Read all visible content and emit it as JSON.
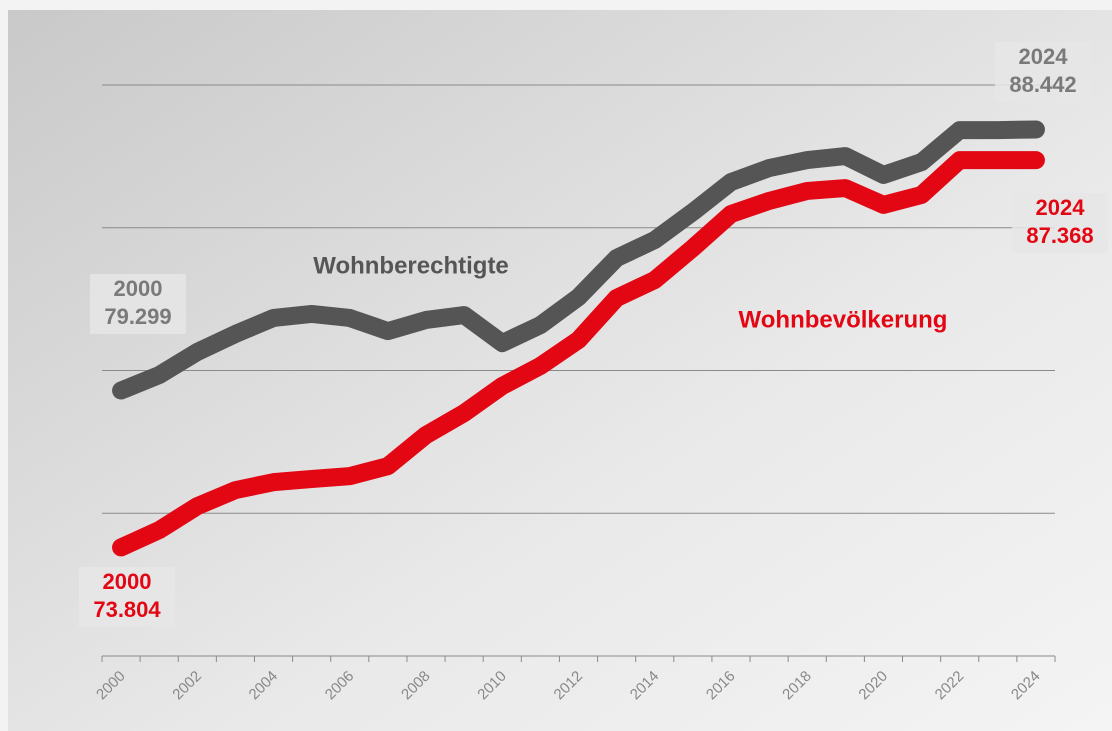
{
  "chart_data": {
    "type": "line",
    "categories": [
      "2000",
      null,
      "2002",
      null,
      "2004",
      null,
      "2006",
      null,
      "2008",
      null,
      "2010",
      null,
      "2012",
      null,
      "2014",
      null,
      "2016",
      null,
      "2018",
      null,
      "2020",
      null,
      "2022",
      null,
      "2024"
    ],
    "series": [
      {
        "name": "Wohnberechtigte",
        "color": "#555555",
        "values": [
          79299,
          79840,
          80650,
          81280,
          81840,
          81980,
          81840,
          81380,
          81770,
          81940,
          80960,
          81590,
          82570,
          83940,
          84570,
          85550,
          86600,
          87090,
          87370,
          87510,
          86850,
          87300,
          88420,
          88420,
          88442
        ],
        "value_labels": [
          "79.299",
          null,
          null,
          null,
          null,
          null,
          null,
          null,
          null,
          null,
          null,
          null,
          null,
          null,
          null,
          null,
          null,
          null,
          null,
          null,
          null,
          null,
          null,
          null,
          "88.442"
        ]
      },
      {
        "name": "Wohnbevölkerung",
        "color": "#e30613",
        "values": [
          73804,
          74410,
          75250,
          75810,
          76090,
          76200,
          76300,
          76650,
          77740,
          78510,
          79460,
          80160,
          81070,
          82540,
          83170,
          84290,
          85480,
          85940,
          86290,
          86390,
          85800,
          86150,
          87370,
          87370,
          87368
        ],
        "value_labels": [
          "73.804",
          null,
          null,
          null,
          null,
          null,
          null,
          null,
          null,
          null,
          null,
          null,
          null,
          null,
          null,
          null,
          null,
          null,
          null,
          null,
          null,
          null,
          null,
          null,
          "87.368"
        ]
      }
    ],
    "ylim": [
      70000,
      90000
    ],
    "yticks": [
      70000,
      75000,
      80000,
      85000,
      90000
    ],
    "grid": true
  }
}
